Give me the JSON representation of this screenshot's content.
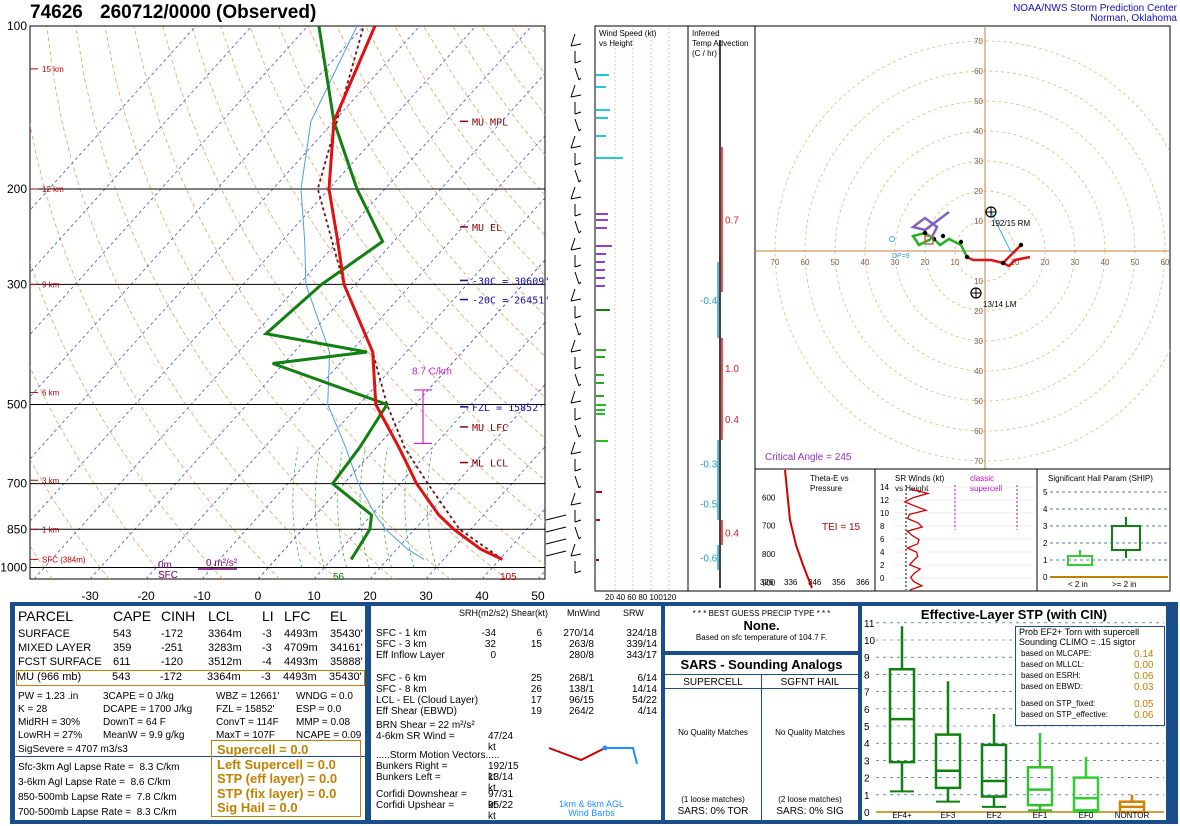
{
  "header": {
    "station": "74626",
    "datetime": "260712/0000",
    "status": "(Observed)",
    "center_line1": "NOAA/NWS Storm Prediction Center",
    "center_line2": "Norman, Oklahoma"
  },
  "skewt": {
    "pressure_labels": [
      "100",
      "200",
      "300",
      "500",
      "700",
      "850",
      "1000"
    ],
    "temp_labels": [
      "-30",
      "-20",
      "-10",
      "0",
      "10",
      "20",
      "30",
      "40",
      "50"
    ],
    "height_labels": [
      "15 km",
      "12 km",
      "9 km",
      "6 km",
      "3 km",
      "1 km",
      "SFC (384m)"
    ],
    "levels": [
      "MU MPL",
      "MU EL",
      "-30C = 30609'",
      "-20C = 26451'",
      "FZL = 15852'",
      "MU LFC",
      "ML LCL"
    ],
    "lapse_label": "8.7 C/km",
    "dcape_labels": [
      "0m",
      "SFC",
      "0 m²/s²"
    ],
    "temp_sfc": "105",
    "dwpt_sfc": "56",
    "chart_data": {
      "type": "line",
      "xlabel": "Temperature (C)",
      "ylabel": "Pressure (mb)",
      "xlim": [
        -35,
        50
      ],
      "ylim": [
        1050,
        100
      ],
      "series": [
        {
          "pressure": [
            966,
            925,
            850,
            800,
            700,
            600,
            500,
            400,
            300,
            250,
            200,
            150,
            100
          ],
          "values": [
            40.5,
            35,
            27,
            22,
            13,
            4,
            -7,
            -16,
            -32,
            -40,
            -50,
            -60,
            -68
          ]
        },
        {
          "pressure": [
            966,
            925,
            850,
            800,
            700,
            600,
            500,
            420,
            400,
            370,
            300,
            250,
            200,
            150,
            100
          ],
          "values": [
            13.5,
            13,
            12,
            10,
            -2,
            -3,
            -5,
            -32,
            -17,
            -38,
            -36,
            -32,
            -45,
            -60,
            -78
          ]
        },
        {
          "pressure": [
            966,
            850,
            700,
            600,
            500,
            400,
            300,
            200,
            100
          ],
          "values": [
            40.5,
            28,
            15,
            5,
            -5,
            -16,
            -32,
            -52,
            -70
          ]
        }
      ]
    }
  },
  "wind_panel": {
    "title": "Wind Speed (kt) vs Height",
    "axis": "20 40 60 80 100120"
  },
  "tadv_panel": {
    "title": "Inferred Temp Advection (C / hr)",
    "values": [
      "0.7",
      "-0.4",
      "1.0",
      "0.4",
      "-0.3",
      "-0.5",
      "0.4",
      "-0.6"
    ]
  },
  "hodograph": {
    "rings": [
      "10",
      "20",
      "30",
      "40",
      "50",
      "60",
      "70"
    ],
    "rm_label": "192/15 RM",
    "lm_label": "13/14 LM",
    "critical_angle": "Critical Angle = 245",
    "dp_label": "DP=9"
  },
  "theta_panel": {
    "title": "Theta-E vs Pressure",
    "tei": "TEI = 15",
    "ticks_y": [
      "600",
      "700",
      "800",
      "900"
    ],
    "ticks_x": [
      "326",
      "336",
      "346",
      "356",
      "366"
    ]
  },
  "srw_panel": {
    "title": "SR Winds (kt) vs Height",
    "classic": "classic supercell",
    "ticks_y": [
      "14",
      "12",
      "10",
      "8",
      "6",
      "4",
      "2",
      "0"
    ]
  },
  "ship_panel": {
    "title": "Significant Hail Param (SHIP)",
    "ticks_y": [
      "5",
      "4",
      "3",
      "2",
      "1",
      "0"
    ],
    "x1": "< 2 in",
    "x2": ">= 2 in"
  },
  "parcel": {
    "headers": [
      "PARCEL",
      "CAPE",
      "CINH",
      "LCL",
      "LI",
      "LFC",
      "EL"
    ],
    "rows": [
      [
        "SURFACE",
        "543",
        "-172",
        "3364m",
        "-3",
        "4493m",
        "35430'"
      ],
      [
        "MIXED LAYER",
        "359",
        "-251",
        "3283m",
        "-3",
        "4709m",
        "34161'"
      ],
      [
        "FCST SURFACE",
        "611",
        "-120",
        "3512m",
        "-4",
        "4493m",
        "35888'"
      ],
      [
        "MU  (966 mb)",
        "543",
        "-172",
        "3364m",
        "-3",
        "4493m",
        "35430'"
      ]
    ],
    "stats": [
      [
        "PW = 1.23 .in",
        "3CAPE = 0 J/kg",
        "WBZ = 12661'",
        "WNDG = 0.0"
      ],
      [
        "K = 28",
        "DCAPE = 1700 J/kg",
        "FZL = 15852'",
        "ESP = 0.0"
      ],
      [
        "MidRH = 30%",
        "DownT = 64 F",
        "ConvT = 114F",
        "MMP = 0.08"
      ],
      [
        "LowRH = 27%",
        "MeanW = 9.9 g/kg",
        "MaxT = 107F",
        "NCAPE = 0.09"
      ]
    ],
    "sigsevere": "SigSevere = 4707 m3/s3",
    "lapse": [
      "Sfc-3km Agl Lapse Rate =  8.3 C/km",
      "3-6km Agl Lapse Rate =  8.6 C/km",
      "850-500mb Lapse Rate =  7.8 C/km",
      "700-500mb Lapse Rate =  8.3 C/km"
    ],
    "indices": [
      "Supercell = 0.0",
      "Left Supercell = 0.0",
      "STP (eff layer) = 0.0",
      "STP (fix layer) = 0.0",
      "Sig Hail = 0.0"
    ]
  },
  "kinematic": {
    "headers": [
      "SRH(m2/s2)",
      "Shear(kt)",
      "MnWind",
      "SRW"
    ],
    "rows": [
      [
        "SFC - 1 km",
        "-34",
        "6",
        "270/14",
        "324/18"
      ],
      [
        "SFC - 3 km",
        "32",
        "15",
        "263/8",
        "339/14"
      ],
      [
        "Eff Inflow Layer",
        "0",
        "",
        "280/8",
        "343/17"
      ],
      [
        "",
        "",
        "",
        "",
        ""
      ],
      [
        "SFC - 6 km",
        "",
        "25",
        "268/1",
        "6/14"
      ],
      [
        "SFC - 8 km",
        "",
        "26",
        "138/1",
        "14/14"
      ],
      [
        "LCL - EL (Cloud Layer)",
        "",
        "17",
        "96/15",
        "54/22"
      ],
      [
        "Eff Shear (EBWD)",
        "",
        "19",
        "264/2",
        "4/14"
      ]
    ],
    "brn": "BRN Shear =  22 m²/s²",
    "srwind": "4-6km SR Wind =",
    "srwind_val": "47/24 kt",
    "storm_title": ".....Storm Motion Vectors.....",
    "bunkers_r": "Bunkers Right =",
    "bunkers_r_val": "192/15 kt",
    "bunkers_l": "Bunkers Left =",
    "bunkers_l_val": "13/14 kt",
    "corfidi_d": "Corfidi Downshear =",
    "corfidi_d_val": "97/31 kt",
    "corfidi_u": "Corfidi Upshear =",
    "corfidi_u_val": "95/22 kt",
    "barbs_label1": "1km & 6km AGL",
    "barbs_label2": "Wind Barbs"
  },
  "precip": {
    "title": "* * * BEST GUESS PRECIP TYPE * * *",
    "value": "None.",
    "note": "Based on sfc temperature of 104.7 F."
  },
  "sars": {
    "title": "SARS - Sounding Analogs",
    "col1": "SUPERCELL",
    "col2": "SGFNT HAIL",
    "nomatch": "No Quality Matches",
    "loose1": "(1 loose matches)",
    "loose2": "(2 loose matches)",
    "tor": "SARS:  0% TOR",
    "sig": "SARS:  0% SIG"
  },
  "stp": {
    "title": "Effective-Layer STP (with CIN)",
    "prob_title1": "Prob EF2+ Torn with supercell",
    "prob_title2": "Sounding CLIMO = .15 sigtor",
    "prob_rows": [
      [
        "based on MLCAPE:",
        "0.14"
      ],
      [
        "based on MLLCL:",
        "0.00"
      ],
      [
        "based on ESRH:",
        "0.06"
      ],
      [
        "based on EBWD:",
        "0.03"
      ]
    ],
    "prob_rows2": [
      [
        "based on STP_fixed:",
        "0.05"
      ],
      [
        "based on STP_effective:",
        "0.06"
      ]
    ],
    "yticks": [
      "11",
      "10",
      "9",
      "8",
      "7",
      "6",
      "5",
      "4",
      "3",
      "2",
      "1",
      "0"
    ],
    "categories": [
      "EF4+",
      "EF3",
      "EF2",
      "EF1",
      "EF0",
      "NONTOR"
    ],
    "boxes": [
      {
        "min": 1.2,
        "q1": 2.9,
        "med": 5.4,
        "q3": 8.3,
        "max": 10.8
      },
      {
        "min": 0.6,
        "q1": 1.4,
        "med": 2.4,
        "q3": 4.5,
        "max": 7.6
      },
      {
        "min": 0.3,
        "q1": 0.9,
        "med": 1.8,
        "q3": 3.9,
        "max": 5.7
      },
      {
        "min": 0.1,
        "q1": 0.4,
        "med": 1.3,
        "q3": 2.6,
        "max": 4.6
      },
      {
        "min": 0.0,
        "q1": 0.1,
        "med": 0.8,
        "q3": 2.0,
        "max": 3.2
      },
      {
        "min": 0.0,
        "q1": 0.0,
        "med": 0.3,
        "q3": 0.6,
        "max": 1.0
      }
    ]
  }
}
